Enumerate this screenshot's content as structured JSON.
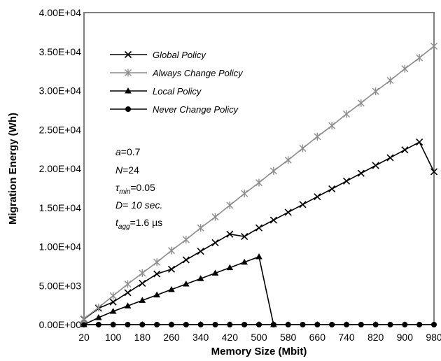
{
  "chart_data": {
    "type": "line",
    "xlabel": "Memory Size (Mbit)",
    "ylabel": "Migration Energy (Wh)",
    "ylim": [
      0,
      40000
    ],
    "xlim": [
      20,
      980
    ],
    "x_ticks": [
      "20",
      "100",
      "180",
      "260",
      "340",
      "420",
      "500",
      "580",
      "660",
      "740",
      "820",
      "900",
      "980"
    ],
    "y_ticks": [
      "0.00E+00",
      "5.00E+03",
      "1.00E+04",
      "1.50E+04",
      "2.00E+04",
      "2.50E+04",
      "3.00E+04",
      "3.50E+04",
      "4.00E+04"
    ],
    "grid": false,
    "legend_position": "top-left",
    "series": [
      {
        "name": "Global Policy",
        "color": "#000000",
        "marker": "x",
        "x": [
          20,
          60,
          100,
          140,
          180,
          220,
          260,
          300,
          340,
          380,
          420,
          460,
          500,
          540,
          580,
          620,
          660,
          700,
          740,
          780,
          820,
          860,
          900,
          940,
          980
        ],
        "values": [
          700,
          2100,
          2900,
          4100,
          5300,
          6500,
          7100,
          8300,
          9400,
          10500,
          11600,
          11300,
          12400,
          13400,
          14400,
          15400,
          16400,
          17400,
          18400,
          19400,
          20400,
          21400,
          22400,
          23400,
          19600
        ]
      },
      {
        "name": "Always Change Policy",
        "color": "#8c8c8c",
        "marker": "asterisk",
        "x": [
          20,
          60,
          100,
          140,
          180,
          220,
          260,
          300,
          340,
          380,
          420,
          460,
          500,
          540,
          580,
          620,
          660,
          700,
          740,
          780,
          820,
          860,
          900,
          940,
          980
        ],
        "values": [
          750,
          2200,
          3700,
          5200,
          6600,
          8000,
          9500,
          10900,
          12400,
          13800,
          15300,
          16800,
          18200,
          19700,
          21100,
          22600,
          24100,
          25500,
          27000,
          28400,
          29900,
          31300,
          32800,
          34200,
          35700
        ]
      },
      {
        "name": "Local Policy",
        "color": "#000000",
        "marker": "triangle",
        "x": [
          20,
          60,
          100,
          140,
          180,
          220,
          260,
          300,
          340,
          380,
          420,
          460,
          500,
          540
        ],
        "values": [
          0,
          900,
          1700,
          2400,
          3100,
          3800,
          4500,
          5200,
          5900,
          6600,
          7300,
          8000,
          8700,
          0
        ]
      },
      {
        "name": "Never Change Policy",
        "color": "#000000",
        "marker": "circle",
        "x": [
          20,
          60,
          100,
          140,
          180,
          220,
          260,
          300,
          340,
          380,
          420,
          460,
          500,
          540,
          580,
          620,
          660,
          700,
          740,
          780,
          820,
          860,
          900,
          940,
          980
        ],
        "values": [
          0,
          0,
          0,
          0,
          0,
          0,
          0,
          0,
          0,
          0,
          0,
          0,
          0,
          0,
          0,
          0,
          0,
          0,
          0,
          0,
          0,
          0,
          0,
          0,
          0
        ]
      }
    ],
    "annotations": {
      "a": {
        "sym": "a",
        "val": "=0.7"
      },
      "n": {
        "sym": "N",
        "val": "=24"
      },
      "tau": {
        "sym": "τ",
        "sub": "min",
        "val": "=0.05"
      },
      "d": {
        "sym": "D",
        "val": "= 10 sec."
      },
      "t": {
        "sym": "t",
        "sub": "agg",
        "val": "=1.6 µs"
      }
    }
  }
}
